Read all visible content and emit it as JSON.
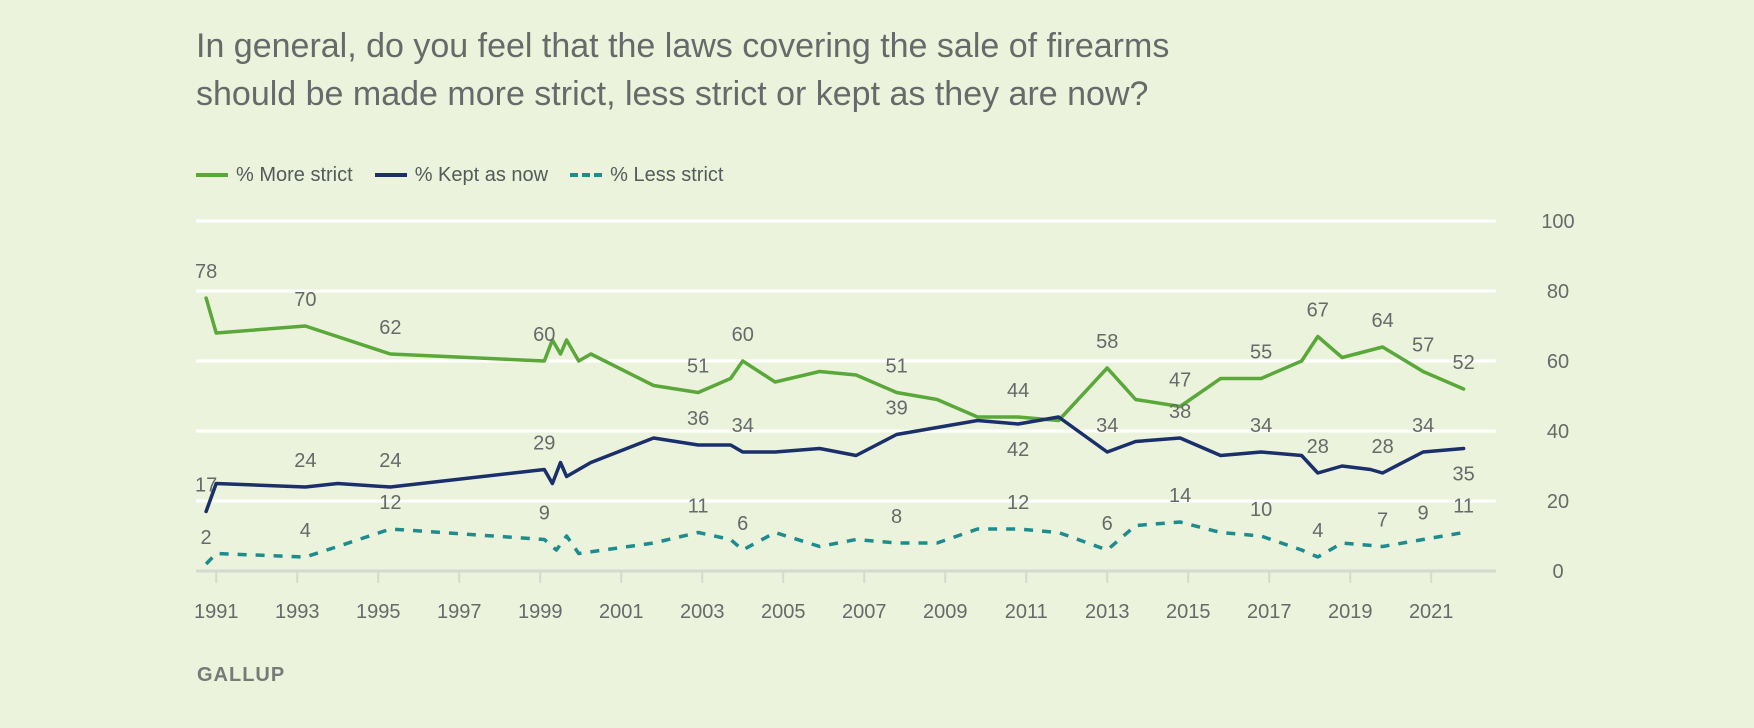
{
  "title": "In general, do you feel that the laws covering the sale of firearms\nshould be made more strict, less strict or kept as they are now?",
  "source": "GALLUP",
  "colors": {
    "more_strict": "#5aa83a",
    "kept": "#1b2f6b",
    "less_strict": "#1e8c8c",
    "grid": "#ffffff",
    "baseline": "#d5dacd"
  },
  "chart_data": {
    "type": "line",
    "xlim": [
      1990.5,
      2022.6
    ],
    "ylim": [
      0,
      100
    ],
    "y_ticks": [
      0,
      20,
      40,
      60,
      80,
      100
    ],
    "x_ticks": [
      1991,
      1993,
      1995,
      1997,
      1999,
      2001,
      2003,
      2005,
      2007,
      2009,
      2011,
      2013,
      2015,
      2017,
      2019,
      2021
    ],
    "x_minor_ticks": [
      1991,
      1993,
      1995,
      1997,
      1999,
      2001,
      2003,
      2005,
      2007,
      2009,
      2011,
      2013,
      2015,
      2017,
      2019,
      2021
    ],
    "legend_position": "top-left",
    "y_axis_side": "right",
    "series": [
      {
        "key": "more_strict",
        "name": "% More strict",
        "style": "solid",
        "points": [
          [
            1990.75,
            78
          ],
          [
            1991.0,
            68
          ],
          [
            1993.2,
            70
          ],
          [
            1995.3,
            62
          ],
          [
            1999.1,
            60
          ],
          [
            1999.3,
            66
          ],
          [
            1999.5,
            62
          ],
          [
            1999.65,
            66
          ],
          [
            1999.95,
            60
          ],
          [
            2000.25,
            62
          ],
          [
            2001.8,
            53
          ],
          [
            2002.9,
            51
          ],
          [
            2003.7,
            55
          ],
          [
            2004.0,
            60
          ],
          [
            2004.8,
            54
          ],
          [
            2005.9,
            57
          ],
          [
            2006.8,
            56
          ],
          [
            2007.8,
            51
          ],
          [
            2008.8,
            49
          ],
          [
            2009.8,
            44
          ],
          [
            2010.8,
            44
          ],
          [
            2011.8,
            43
          ],
          [
            2013.0,
            58
          ],
          [
            2013.7,
            49
          ],
          [
            2014.8,
            47
          ],
          [
            2015.8,
            55
          ],
          [
            2016.8,
            55
          ],
          [
            2017.8,
            60
          ],
          [
            2018.2,
            67
          ],
          [
            2018.8,
            61
          ],
          [
            2019.8,
            64
          ],
          [
            2020.8,
            57
          ],
          [
            2021.8,
            52
          ]
        ],
        "labels": [
          {
            "x": 1990.75,
            "y": 78,
            "text": "78",
            "pos": "above"
          },
          {
            "x": 1993.2,
            "y": 70,
            "text": "70",
            "pos": "above"
          },
          {
            "x": 1995.3,
            "y": 62,
            "text": "62",
            "pos": "above"
          },
          {
            "x": 1999.1,
            "y": 60,
            "text": "60",
            "pos": "above"
          },
          {
            "x": 2002.9,
            "y": 51,
            "text": "51",
            "pos": "above"
          },
          {
            "x": 2004.0,
            "y": 60,
            "text": "60",
            "pos": "above"
          },
          {
            "x": 2007.8,
            "y": 51,
            "text": "51",
            "pos": "above"
          },
          {
            "x": 2010.8,
            "y": 44,
            "text": "44",
            "pos": "above"
          },
          {
            "x": 2013.0,
            "y": 58,
            "text": "58",
            "pos": "above"
          },
          {
            "x": 2014.8,
            "y": 47,
            "text": "47",
            "pos": "above"
          },
          {
            "x": 2016.8,
            "y": 55,
            "text": "55",
            "pos": "above"
          },
          {
            "x": 2018.2,
            "y": 67,
            "text": "67",
            "pos": "above"
          },
          {
            "x": 2019.8,
            "y": 64,
            "text": "64",
            "pos": "above"
          },
          {
            "x": 2020.8,
            "y": 57,
            "text": "57",
            "pos": "above"
          },
          {
            "x": 2021.8,
            "y": 52,
            "text": "52",
            "pos": "above"
          }
        ]
      },
      {
        "key": "kept",
        "name": "% Kept as now",
        "style": "solid",
        "points": [
          [
            1990.75,
            17
          ],
          [
            1991.0,
            25
          ],
          [
            1993.2,
            24
          ],
          [
            1994.0,
            25
          ],
          [
            1995.3,
            24
          ],
          [
            1999.1,
            29
          ],
          [
            1999.3,
            25
          ],
          [
            1999.5,
            31
          ],
          [
            1999.65,
            27
          ],
          [
            1999.95,
            29
          ],
          [
            2000.25,
            31
          ],
          [
            2001.8,
            38
          ],
          [
            2002.9,
            36
          ],
          [
            2003.7,
            36
          ],
          [
            2004.0,
            34
          ],
          [
            2004.8,
            34
          ],
          [
            2005.9,
            35
          ],
          [
            2006.8,
            33
          ],
          [
            2007.8,
            39
          ],
          [
            2008.8,
            41
          ],
          [
            2009.8,
            43
          ],
          [
            2010.8,
            42
          ],
          [
            2011.8,
            44
          ],
          [
            2013.0,
            34
          ],
          [
            2013.7,
            37
          ],
          [
            2014.8,
            38
          ],
          [
            2015.8,
            33
          ],
          [
            2016.8,
            34
          ],
          [
            2017.8,
            33
          ],
          [
            2018.2,
            28
          ],
          [
            2018.8,
            30
          ],
          [
            2019.5,
            29
          ],
          [
            2019.8,
            28
          ],
          [
            2020.8,
            34
          ],
          [
            2021.8,
            35
          ]
        ],
        "labels": [
          {
            "x": 1990.75,
            "y": 17,
            "text": "17",
            "pos": "above"
          },
          {
            "x": 1993.2,
            "y": 24,
            "text": "24",
            "pos": "above"
          },
          {
            "x": 1995.3,
            "y": 24,
            "text": "24",
            "pos": "above"
          },
          {
            "x": 1999.1,
            "y": 29,
            "text": "29",
            "pos": "above"
          },
          {
            "x": 2002.9,
            "y": 36,
            "text": "36",
            "pos": "above"
          },
          {
            "x": 2004.0,
            "y": 34,
            "text": "34",
            "pos": "above"
          },
          {
            "x": 2007.8,
            "y": 39,
            "text": "39",
            "pos": "above"
          },
          {
            "x": 2010.8,
            "y": 42,
            "text": "42",
            "pos": "below"
          },
          {
            "x": 2013.0,
            "y": 34,
            "text": "34",
            "pos": "above"
          },
          {
            "x": 2014.8,
            "y": 38,
            "text": "38",
            "pos": "above"
          },
          {
            "x": 2016.8,
            "y": 34,
            "text": "34",
            "pos": "above"
          },
          {
            "x": 2018.2,
            "y": 28,
            "text": "28",
            "pos": "above"
          },
          {
            "x": 2019.8,
            "y": 28,
            "text": "28",
            "pos": "above"
          },
          {
            "x": 2020.8,
            "y": 34,
            "text": "34",
            "pos": "above"
          },
          {
            "x": 2021.8,
            "y": 35,
            "text": "35",
            "pos": "below"
          }
        ]
      },
      {
        "key": "less_strict",
        "name": "% Less strict",
        "style": "dashed",
        "points": [
          [
            1990.75,
            2
          ],
          [
            1991.0,
            5
          ],
          [
            1993.2,
            4
          ],
          [
            1994.0,
            7
          ],
          [
            1995.3,
            12
          ],
          [
            1999.1,
            9
          ],
          [
            1999.4,
            6
          ],
          [
            1999.65,
            10
          ],
          [
            1999.95,
            5
          ],
          [
            2001.8,
            8
          ],
          [
            2002.9,
            11
          ],
          [
            2003.7,
            9
          ],
          [
            2004.0,
            6
          ],
          [
            2004.8,
            11
          ],
          [
            2005.9,
            7
          ],
          [
            2006.8,
            9
          ],
          [
            2007.8,
            8
          ],
          [
            2008.8,
            8
          ],
          [
            2009.8,
            12
          ],
          [
            2010.8,
            12
          ],
          [
            2011.8,
            11
          ],
          [
            2013.0,
            6
          ],
          [
            2013.7,
            13
          ],
          [
            2014.8,
            14
          ],
          [
            2015.8,
            11
          ],
          [
            2016.8,
            10
          ],
          [
            2017.8,
            6
          ],
          [
            2018.2,
            4
          ],
          [
            2018.8,
            8
          ],
          [
            2019.8,
            7
          ],
          [
            2020.8,
            9
          ],
          [
            2021.8,
            11
          ]
        ],
        "labels": [
          {
            "x": 1990.75,
            "y": 2,
            "text": "2",
            "pos": "above"
          },
          {
            "x": 1993.2,
            "y": 4,
            "text": "4",
            "pos": "above"
          },
          {
            "x": 1995.3,
            "y": 12,
            "text": "12",
            "pos": "above"
          },
          {
            "x": 1999.1,
            "y": 9,
            "text": "9",
            "pos": "above"
          },
          {
            "x": 2002.9,
            "y": 11,
            "text": "11",
            "pos": "above"
          },
          {
            "x": 2004.0,
            "y": 6,
            "text": "6",
            "pos": "above"
          },
          {
            "x": 2007.8,
            "y": 8,
            "text": "8",
            "pos": "above"
          },
          {
            "x": 2010.8,
            "y": 12,
            "text": "12",
            "pos": "above"
          },
          {
            "x": 2013.0,
            "y": 6,
            "text": "6",
            "pos": "above"
          },
          {
            "x": 2014.8,
            "y": 14,
            "text": "14",
            "pos": "above"
          },
          {
            "x": 2016.8,
            "y": 10,
            "text": "10",
            "pos": "above"
          },
          {
            "x": 2018.2,
            "y": 4,
            "text": "4",
            "pos": "above"
          },
          {
            "x": 2019.8,
            "y": 7,
            "text": "7",
            "pos": "above"
          },
          {
            "x": 2020.8,
            "y": 9,
            "text": "9",
            "pos": "above"
          },
          {
            "x": 2021.8,
            "y": 11,
            "text": "11",
            "pos": "above"
          }
        ]
      }
    ]
  }
}
